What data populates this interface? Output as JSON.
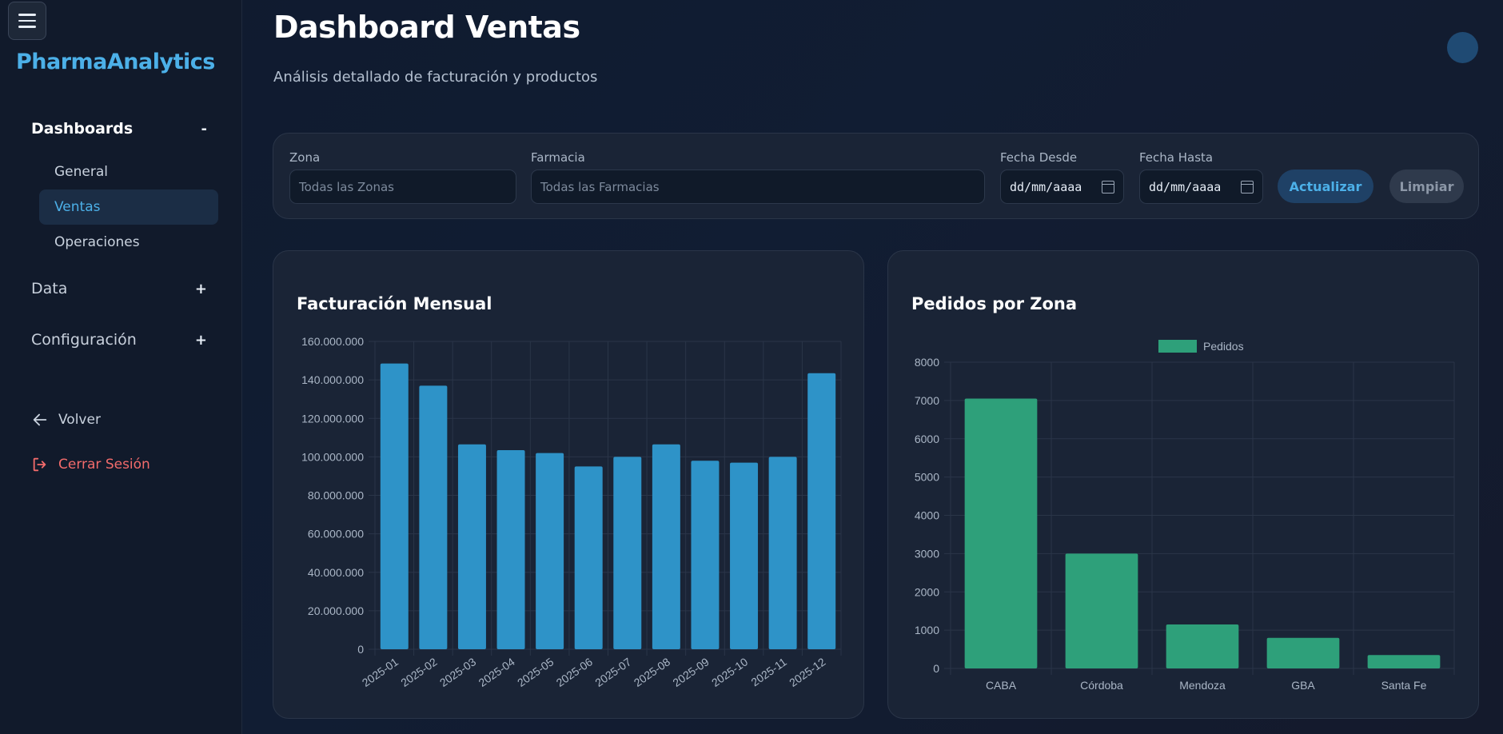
{
  "sidebar": {
    "brand": "PharmaAnalytics",
    "sections": [
      {
        "label": "Dashboards",
        "toggle": "-"
      },
      {
        "label": "Data",
        "toggle": "+"
      },
      {
        "label": "Configuración",
        "toggle": "+"
      }
    ],
    "dashboard_items": [
      "General",
      "Ventas",
      "Operaciones"
    ],
    "active_item": "Ventas",
    "back_label": "Volver",
    "logout_label": "Cerrar Sesión"
  },
  "header": {
    "title": "Dashboard Ventas",
    "subtitle": "Análisis detallado de facturación y productos"
  },
  "filters": {
    "zona_label": "Zona",
    "zona_placeholder": "Todas las Zonas",
    "farmacia_label": "Farmacia",
    "farmacia_placeholder": "Todas las Farmacias",
    "fecha_desde_label": "Fecha Desde",
    "fecha_desde_value": "dd/mm/aaaa",
    "fecha_hasta_label": "Fecha Hasta",
    "fecha_hasta_value": "dd/mm/aaaa",
    "update_button": "Actualizar",
    "clear_button": "Limpiar"
  },
  "colors": {
    "accent": "#4cb0e8",
    "bar_blue": "#2e93c8",
    "bar_green": "#2ea07a",
    "logout": "#f26b6b"
  },
  "chart_data": [
    {
      "type": "bar",
      "title": "Facturación Mensual",
      "categories": [
        "2025-01",
        "2025-02",
        "2025-03",
        "2025-04",
        "2025-05",
        "2025-06",
        "2025-07",
        "2025-08",
        "2025-09",
        "2025-10",
        "2025-11",
        "2025-12"
      ],
      "values": [
        148500000,
        137000000,
        106500000,
        103500000,
        102000000,
        95000000,
        100000000,
        106500000,
        98000000,
        97000000,
        100000000,
        143500000
      ],
      "ylim": [
        0,
        160000000
      ],
      "yticks": [
        "0",
        "20.000.000",
        "40.000.000",
        "60.000.000",
        "80.000.000",
        "100.000.000",
        "120.000.000",
        "140.000.000",
        "160.000.000"
      ],
      "grid": true,
      "legend": false
    },
    {
      "type": "bar",
      "title": "Pedidos por Zona",
      "categories": [
        "CABA",
        "Córdoba",
        "Mendoza",
        "GBA",
        "Santa Fe"
      ],
      "series": [
        {
          "name": "Pedidos",
          "values": [
            7050,
            3000,
            1150,
            800,
            350
          ]
        }
      ],
      "ylim": [
        0,
        8000
      ],
      "yticks": [
        "0",
        "1000",
        "2000",
        "3000",
        "4000",
        "5000",
        "6000",
        "7000",
        "8000"
      ],
      "grid": true,
      "legend": "top-center"
    }
  ]
}
